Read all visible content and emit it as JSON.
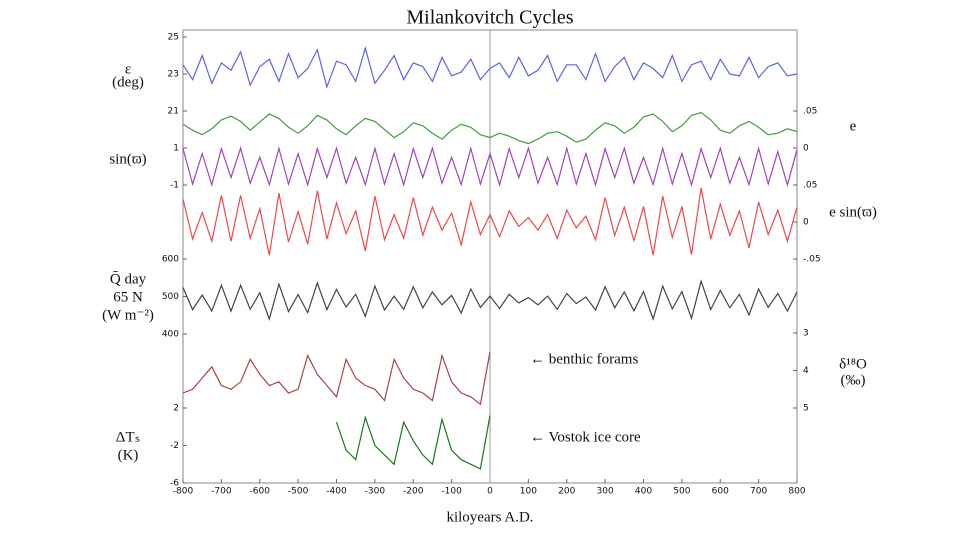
{
  "chart_data": {
    "type": "line",
    "title": "Milankovitch Cycles",
    "xlabel": "kiloyears A.D.",
    "xlim": [
      -800,
      800
    ],
    "xticks": [
      -800,
      -700,
      -600,
      -500,
      -400,
      -300,
      -200,
      -100,
      0,
      100,
      200,
      300,
      400,
      500,
      600,
      700,
      800
    ],
    "x": [
      -800,
      -775,
      -750,
      -725,
      -700,
      -675,
      -650,
      -625,
      -600,
      -575,
      -550,
      -525,
      -500,
      -475,
      -450,
      -425,
      -400,
      -375,
      -350,
      -325,
      -300,
      -275,
      -250,
      -225,
      -200,
      -175,
      -150,
      -125,
      -100,
      -75,
      -50,
      -25,
      0,
      25,
      50,
      75,
      100,
      125,
      150,
      175,
      200,
      225,
      250,
      275,
      300,
      325,
      350,
      375,
      400,
      425,
      450,
      475,
      500,
      525,
      550,
      575,
      600,
      625,
      650,
      675,
      700,
      725,
      750,
      775,
      800
    ],
    "panels": [
      {
        "ylabel": [
          "ε",
          "(deg)"
        ],
        "axis": "y",
        "ylim": [
          21,
          25
        ],
        "yticks": [
          21,
          23,
          25
        ],
        "series": [
          {
            "color": "#5a63e6",
            "values": [
              23.5,
              22.7,
              24.0,
              22.5,
              23.6,
              23.2,
              24.2,
              22.4,
              23.4,
              23.8,
              22.6,
              24.1,
              22.8,
              23.3,
              24.3,
              22.3,
              23.7,
              23.5,
              22.6,
              24.4,
              22.5,
              23.2,
              24.0,
              22.7,
              23.6,
              23.4,
              22.6,
              23.9,
              22.9,
              23.1,
              23.8,
              22.7,
              23.3,
              23.6,
              22.8,
              23.9,
              22.9,
              23.2,
              24.0,
              22.6,
              23.5,
              23.5,
              22.7,
              24.1,
              22.6,
              23.4,
              23.9,
              22.7,
              23.6,
              23.3,
              22.8,
              24.0,
              22.6,
              23.5,
              23.7,
              22.7,
              23.8,
              23.0,
              22.9,
              23.9,
              22.8,
              23.4,
              23.6,
              22.9,
              23.0
            ]
          }
        ]
      },
      {
        "ylabel": [
          "e"
        ],
        "axis": "y2",
        "ylim": [
          0,
          0.05
        ],
        "yticks": [
          0,
          {
            "value": 0.05,
            "label": ".05"
          }
        ],
        "series": [
          {
            "color": "#3f9e3f",
            "values": [
              0.032,
              0.024,
              0.018,
              0.026,
              0.038,
              0.043,
              0.036,
              0.024,
              0.035,
              0.046,
              0.04,
              0.028,
              0.02,
              0.03,
              0.044,
              0.038,
              0.026,
              0.018,
              0.03,
              0.04,
              0.036,
              0.025,
              0.014,
              0.022,
              0.034,
              0.03,
              0.02,
              0.012,
              0.024,
              0.032,
              0.028,
              0.018,
              0.014,
              0.02,
              0.016,
              0.01,
              0.006,
              0.012,
              0.02,
              0.022,
              0.016,
              0.008,
              0.012,
              0.024,
              0.034,
              0.03,
              0.02,
              0.028,
              0.042,
              0.046,
              0.036,
              0.022,
              0.03,
              0.044,
              0.048,
              0.038,
              0.024,
              0.02,
              0.03,
              0.036,
              0.028,
              0.018,
              0.02,
              0.026,
              0.022
            ]
          }
        ]
      },
      {
        "ylabel": [
          "sin(ϖ)"
        ],
        "axis": "y",
        "ylim": [
          -1,
          1
        ],
        "yticks": [
          -1,
          1
        ],
        "series": [
          {
            "color": "#a044b8",
            "values": [
              0.98,
              -0.95,
              0.7,
              -0.99,
              0.96,
              -0.6,
              0.99,
              -0.9,
              0.5,
              -0.98,
              0.98,
              -0.95,
              0.7,
              -0.99,
              0.96,
              -0.6,
              0.99,
              -0.9,
              0.5,
              -0.98,
              0.98,
              -0.95,
              0.7,
              -0.99,
              0.96,
              -0.6,
              0.99,
              -0.9,
              0.5,
              -0.98,
              0.98,
              -0.95,
              0.7,
              -0.99,
              0.96,
              -0.6,
              0.99,
              -0.9,
              0.5,
              -0.98,
              0.98,
              -0.95,
              0.7,
              -0.99,
              0.96,
              -0.6,
              0.99,
              -0.9,
              0.5,
              -0.98,
              0.98,
              -0.95,
              0.7,
              -0.99,
              0.96,
              -0.6,
              0.99,
              -0.9,
              0.5,
              -0.98,
              0.97,
              -0.94,
              0.8,
              -0.99,
              0.9
            ]
          }
        ]
      },
      {
        "ylabel": [
          "e sin(ϖ)"
        ],
        "axis": "y2",
        "ylim": [
          -0.05,
          0.05
        ],
        "yticks": [
          {
            "value": -0.05,
            "label": "-.05"
          },
          0,
          {
            "value": 0.05,
            "label": ".05"
          }
        ],
        "series": [
          {
            "color": "#ea4a4a",
            "values": [
              0.031,
              -0.023,
              0.013,
              -0.026,
              0.036,
              -0.026,
              0.036,
              -0.022,
              0.018,
              -0.045,
              0.039,
              -0.027,
              0.014,
              -0.03,
              0.042,
              -0.023,
              0.026,
              -0.016,
              0.015,
              -0.039,
              0.035,
              -0.024,
              0.01,
              -0.022,
              0.033,
              -0.018,
              0.02,
              -0.011,
              0.012,
              -0.031,
              0.027,
              -0.017,
              0.01,
              -0.02,
              0.015,
              -0.006,
              0.006,
              -0.011,
              0.01,
              -0.022,
              0.016,
              -0.008,
              0.008,
              -0.024,
              0.033,
              -0.018,
              0.02,
              -0.025,
              0.021,
              -0.045,
              0.035,
              -0.021,
              0.021,
              -0.044,
              0.046,
              -0.023,
              0.024,
              -0.018,
              0.015,
              -0.035,
              0.027,
              -0.017,
              0.016,
              -0.026,
              0.02
            ]
          }
        ]
      },
      {
        "ylabel": [
          "Q̄ day",
          "65 N",
          "(W m⁻²)"
        ],
        "axis": "y",
        "ylim": [
          400,
          600
        ],
        "yticks": [
          400,
          500,
          600
        ],
        "series": [
          {
            "color": "#444444",
            "values": [
              524,
              465,
              504,
              461,
              530,
              461,
              530,
              466,
              510,
              440,
              533,
              460,
              505,
              457,
              536,
              465,
              519,
              472,
              506,
              447,
              528,
              464,
              501,
              466,
              526,
              470,
              512,
              478,
              503,
              456,
              520,
              471,
              501,
              468,
              506,
              483,
              497,
              478,
              501,
              466,
              508,
              481,
              499,
              464,
              526,
              470,
              512,
              462,
              513,
              440,
              528,
              467,
              513,
              442,
              541,
              465,
              516,
              470,
              506,
              451,
              520,
              471,
              508,
              461,
              512
            ]
          }
        ]
      },
      {
        "ylabel": [
          "δ¹⁸O",
          "(‰)"
        ],
        "axis": "y2",
        "ylim": [
          5,
          3
        ],
        "yticks": [
          3,
          4,
          5
        ],
        "annotation": "← benthic forams",
        "series": [
          {
            "color": "#a84444",
            "values": [
              4.6,
              4.5,
              4.2,
              3.9,
              4.4,
              4.5,
              4.3,
              3.7,
              4.1,
              4.4,
              4.3,
              4.6,
              4.5,
              3.6,
              4.1,
              4.4,
              4.7,
              3.7,
              4.2,
              4.4,
              4.5,
              4.8,
              3.7,
              4.2,
              4.5,
              4.6,
              4.8,
              3.6,
              4.3,
              4.6,
              4.7,
              4.9,
              3.5,
              null,
              null,
              null,
              null,
              null,
              null,
              null,
              null,
              null,
              null,
              null,
              null,
              null,
              null,
              null,
              null,
              null,
              null,
              null,
              null,
              null,
              null,
              null,
              null,
              null,
              null,
              null,
              null,
              null,
              null,
              null,
              null
            ]
          }
        ]
      },
      {
        "ylabel": [
          "ΔTₛ",
          "(K)"
        ],
        "axis": "y",
        "ylim": [
          -6,
          2
        ],
        "yticks": [
          -6,
          -2,
          2
        ],
        "annotation": "← Vostok ice core",
        "series": [
          {
            "color": "#1a7a1a",
            "values": [
              null,
              null,
              null,
              null,
              null,
              null,
              null,
              null,
              null,
              null,
              null,
              null,
              null,
              null,
              null,
              null,
              0.5,
              -2.5,
              -3.5,
              1.0,
              -2.0,
              -3.0,
              -4.0,
              0.5,
              -1.5,
              -3.0,
              -4.0,
              0.8,
              -2.5,
              -3.5,
              -4.0,
              -4.5,
              1.2,
              null,
              null,
              null,
              null,
              null,
              null,
              null,
              null,
              null,
              null,
              null,
              null,
              null,
              null,
              null,
              null,
              null,
              null,
              null,
              null,
              null,
              null,
              null,
              null,
              null,
              null,
              null,
              null,
              null,
              null,
              null,
              null
            ]
          }
        ]
      }
    ]
  }
}
